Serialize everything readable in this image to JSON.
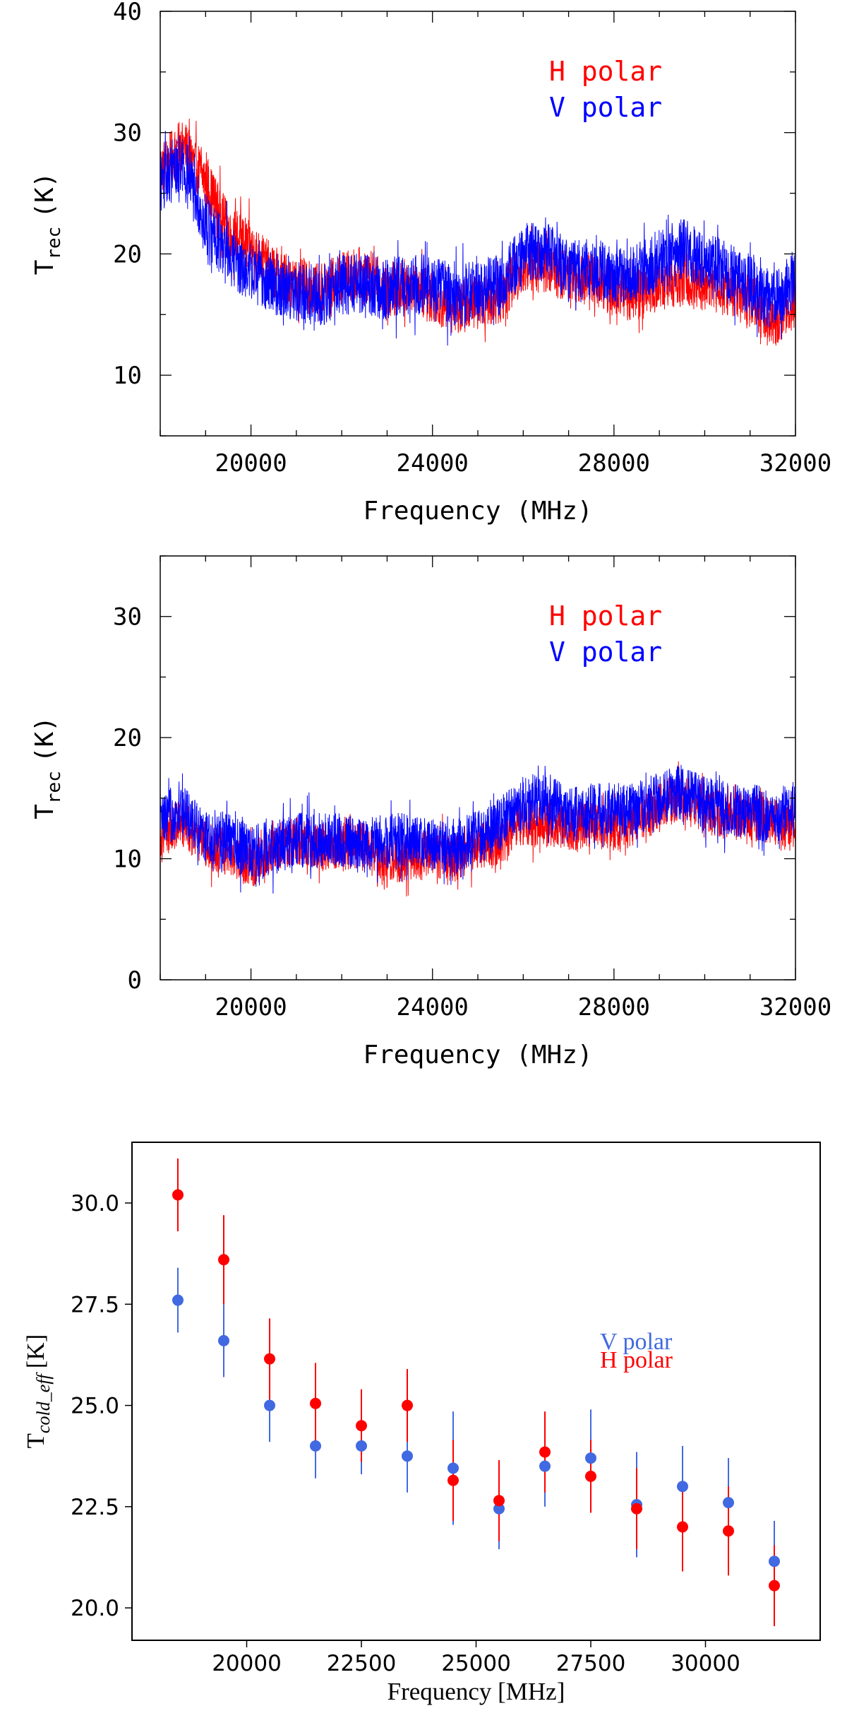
{
  "chart_data": [
    {
      "type": "line",
      "xlabel": "Frequency (MHz)",
      "ylabel": "T",
      "ylabel_sub": "rec",
      "ylabel_unit": "(K)",
      "xlim": [
        18000,
        32000
      ],
      "ylim": [
        5,
        40
      ],
      "x_ticks": [
        20000,
        24000,
        28000,
        32000
      ],
      "y_ticks": [
        10,
        20,
        30,
        40
      ],
      "legend_position": "top-right",
      "series": [
        {
          "name": "H polar",
          "color": "#ff0000",
          "x": [
            18000,
            18500,
            19000,
            19500,
            20000,
            20500,
            21000,
            21500,
            22000,
            22500,
            23000,
            23500,
            24000,
            24500,
            25000,
            25500,
            26000,
            26500,
            27000,
            27500,
            28000,
            28500,
            29000,
            29500,
            30000,
            30500,
            31000,
            31500,
            32000
          ],
          "y": [
            27,
            29,
            26,
            22,
            20.5,
            18.5,
            17.5,
            17,
            18,
            18.5,
            17,
            17.5,
            16.5,
            15.5,
            16,
            16.5,
            19,
            19,
            18,
            18,
            17,
            16.5,
            17.5,
            18,
            17.5,
            17,
            16,
            14.5,
            16
          ]
        },
        {
          "name": "V polar",
          "color": "#0000ff",
          "x": [
            18000,
            18500,
            19000,
            19500,
            20000,
            20500,
            21000,
            21500,
            22000,
            22500,
            23000,
            23500,
            24000,
            24500,
            25000,
            25500,
            26000,
            26500,
            27000,
            27500,
            28000,
            28500,
            29000,
            29500,
            30000,
            30500,
            31000,
            31500,
            32000
          ],
          "y": [
            26,
            27.5,
            22.5,
            20,
            18.5,
            17.5,
            17,
            16.5,
            17.5,
            17.5,
            17,
            17.5,
            17.5,
            16.5,
            17,
            17.5,
            20,
            20.5,
            18.5,
            19,
            18,
            18.5,
            19.5,
            20.5,
            19.5,
            18.5,
            17.5,
            16,
            18
          ]
        }
      ]
    },
    {
      "type": "line",
      "xlabel": "Frequency (MHz)",
      "ylabel": "T",
      "ylabel_sub": "rec",
      "ylabel_unit": "(K)",
      "xlim": [
        18000,
        32000
      ],
      "ylim": [
        0,
        35
      ],
      "x_ticks": [
        20000,
        24000,
        28000,
        32000
      ],
      "y_ticks": [
        0,
        10,
        20,
        30
      ],
      "legend_position": "top-right",
      "series": [
        {
          "name": "H polar",
          "color": "#ff0000",
          "x": [
            18000,
            18500,
            19000,
            19500,
            20000,
            20500,
            21000,
            21500,
            22000,
            22500,
            23000,
            23500,
            24000,
            24500,
            25000,
            25500,
            26000,
            26500,
            27000,
            27500,
            28000,
            28500,
            29000,
            29500,
            30000,
            30500,
            31000,
            31500,
            32000
          ],
          "y": [
            12,
            13,
            11,
            10.5,
            9.5,
            11,
            11.5,
            11,
            11,
            11,
            9.5,
            10,
            10.5,
            10,
            11,
            11.5,
            13,
            13,
            12.5,
            13,
            12.5,
            13,
            14.5,
            15,
            14,
            13.5,
            13.5,
            13,
            12.5
          ]
        },
        {
          "name": "V polar",
          "color": "#0000ff",
          "x": [
            18000,
            18500,
            19000,
            19500,
            20000,
            20500,
            21000,
            21500,
            22000,
            22500,
            23000,
            23500,
            24000,
            24500,
            25000,
            25500,
            26000,
            26500,
            27000,
            27500,
            28000,
            28500,
            29000,
            29500,
            30000,
            30500,
            31000,
            31500,
            32000
          ],
          "y": [
            13,
            14,
            12,
            11.5,
            10.5,
            11,
            11.5,
            11.5,
            11.5,
            11,
            11.5,
            11.5,
            11,
            11,
            12,
            13,
            14.5,
            15,
            13.5,
            14,
            14,
            14,
            15,
            15.5,
            14.5,
            14,
            14,
            13.5,
            14
          ]
        }
      ]
    },
    {
      "type": "scatter",
      "xlabel": "Frequency [MHz]",
      "ylabel": "T",
      "ylabel_sub": "cold_eff",
      "ylabel_unit": "[K]",
      "xlim": [
        17500,
        32500
      ],
      "ylim": [
        19.2,
        31.5
      ],
      "x_ticks": [
        20000,
        22500,
        25000,
        27500,
        30000
      ],
      "y_ticks": [
        20.0,
        22.5,
        25.0,
        27.5,
        30.0
      ],
      "legend_position": "center-right",
      "series": [
        {
          "name": "V polar",
          "color": "#4169e1",
          "x": [
            18500,
            19500,
            20500,
            21500,
            22500,
            23500,
            24500,
            25500,
            26500,
            27500,
            28500,
            29500,
            30500,
            31500
          ],
          "y": [
            27.6,
            26.6,
            25.0,
            24.0,
            24.0,
            23.75,
            23.45,
            22.45,
            23.5,
            23.7,
            22.55,
            23.0,
            22.6,
            21.15
          ],
          "err": [
            0.8,
            0.9,
            0.9,
            0.8,
            0.7,
            0.9,
            1.4,
            1.0,
            1.0,
            1.2,
            1.3,
            1.0,
            1.1,
            1.0
          ]
        },
        {
          "name": "H polar",
          "color": "#ff0000",
          "x": [
            18500,
            19500,
            20500,
            21500,
            22500,
            23500,
            24500,
            25500,
            26500,
            27500,
            28500,
            29500,
            30500,
            31500
          ],
          "y": [
            30.2,
            28.6,
            26.15,
            25.05,
            24.5,
            25.0,
            23.15,
            22.65,
            23.85,
            23.25,
            22.45,
            22.0,
            21.9,
            20.55
          ],
          "err": [
            0.9,
            1.1,
            1.0,
            1.0,
            0.9,
            0.9,
            1.0,
            1.0,
            1.0,
            0.9,
            1.0,
            1.1,
            1.1,
            1.0
          ]
        }
      ]
    }
  ]
}
